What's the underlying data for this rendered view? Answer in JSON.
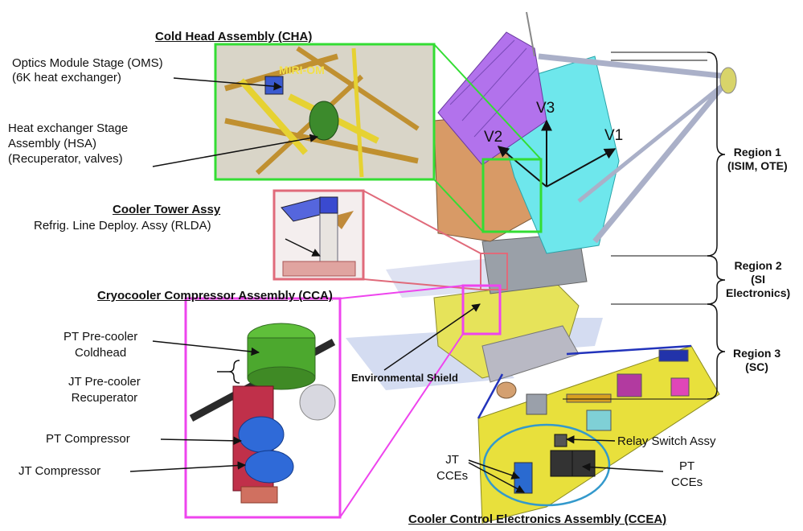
{
  "titles": {
    "cha": "Cold Head Assembly (CHA)",
    "cooler_tower": "Cooler Tower Assy",
    "cca": "Cryocooler Compressor Assembly (CCA)",
    "ccea": "Cooler Control Electronics Assembly (CCEA)"
  },
  "labels": {
    "oms_line1": "Optics Module Stage (OMS)",
    "oms_line2": "(6K heat exchanger)",
    "hsa_line1": "Heat exchanger Stage",
    "hsa_line2": "Assembly (HSA)",
    "hsa_line3": "(Recuperator, valves)",
    "rlda": "Refrig. Line Deploy. Assy (RLDA)",
    "pt_precooler_line1": "PT Pre-cooler",
    "pt_precooler_line2": "Coldhead",
    "jt_precooler_line1": "JT Pre-cooler",
    "jt_precooler_line2": "Recuperator",
    "pt_compressor": "PT Compressor",
    "jt_compressor": "JT Compressor",
    "environmental_shield": "Environmental Shield",
    "relay_switch": "Relay Switch Assy",
    "jt_cces_line1": "JT",
    "jt_cces_line2": "CCEs",
    "pt_cces_line1": "PT",
    "pt_cces_line2": "CCEs",
    "miri_om": "MIRI-OM"
  },
  "axes": {
    "v1": "V1",
    "v2": "V2",
    "v3": "V3"
  },
  "regions": [
    {
      "line1": "Region 1",
      "line2": "(ISIM, OTE)",
      "line3": ""
    },
    {
      "line1": "Region 2",
      "line2": "(SI",
      "line3": "Electronics)"
    },
    {
      "line1": "Region 3",
      "line2": "(SC)",
      "line3": ""
    }
  ],
  "colors": {
    "cha_frame": "#33dd33",
    "tower_frame": "#e06a7a",
    "cca_frame": "#ee44ee",
    "ccea_loop": "#3399cc",
    "connector_blue": "#2233bb"
  }
}
